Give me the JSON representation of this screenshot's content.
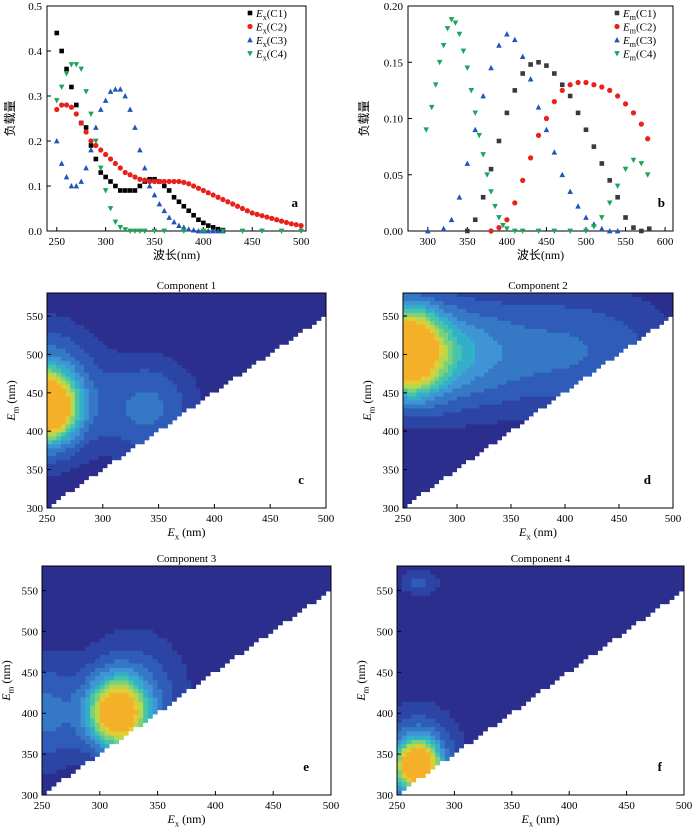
{
  "chart_data": [
    {
      "id": "a",
      "type": "scatter",
      "panel_letter": "a",
      "title": "",
      "xlabel": "波长(nm)",
      "ylabel": "负载量",
      "xlim": [
        240,
        505
      ],
      "ylim": [
        0,
        0.5
      ],
      "xticks": [
        250,
        300,
        350,
        400,
        450,
        500
      ],
      "yticks": [
        0,
        0.1,
        0.2,
        0.3,
        0.4,
        0.5
      ],
      "legend_position": "top-right",
      "series": [
        {
          "name": "Ex(C1)",
          "label_main": "E",
          "label_sub": "x",
          "label_tail": "(C1)",
          "color": "#000000",
          "marker": "square",
          "x": [
            250,
            255,
            260,
            265,
            270,
            275,
            280,
            285,
            290,
            295,
            300,
            305,
            310,
            315,
            320,
            325,
            330,
            335,
            340,
            345,
            350,
            355,
            360,
            365,
            370,
            375,
            380,
            385,
            390,
            395,
            400,
            405,
            410,
            415,
            420
          ],
          "y": [
            0.44,
            0.4,
            0.36,
            0.32,
            0.28,
            0.24,
            0.23,
            0.19,
            0.16,
            0.13,
            0.12,
            0.11,
            0.1,
            0.09,
            0.09,
            0.09,
            0.09,
            0.1,
            0.11,
            0.115,
            0.115,
            0.11,
            0.1,
            0.09,
            0.075,
            0.065,
            0.055,
            0.045,
            0.035,
            0.025,
            0.018,
            0.012,
            0.008,
            0.004,
            0.002
          ]
        },
        {
          "name": "Ex(C2)",
          "label_main": "E",
          "label_sub": "x",
          "label_tail": "(C2)",
          "color": "#e8211c",
          "marker": "circle",
          "x": [
            250,
            255,
            260,
            265,
            270,
            275,
            280,
            285,
            290,
            295,
            300,
            305,
            310,
            315,
            320,
            325,
            330,
            335,
            340,
            345,
            350,
            355,
            360,
            365,
            370,
            375,
            380,
            385,
            390,
            395,
            400,
            405,
            410,
            415,
            420,
            425,
            430,
            435,
            440,
            445,
            450,
            455,
            460,
            465,
            470,
            475,
            480,
            485,
            490,
            495,
            500
          ],
          "y": [
            0.27,
            0.28,
            0.28,
            0.275,
            0.26,
            0.24,
            0.22,
            0.2,
            0.19,
            0.18,
            0.17,
            0.16,
            0.15,
            0.14,
            0.13,
            0.125,
            0.12,
            0.115,
            0.113,
            0.11,
            0.11,
            0.11,
            0.11,
            0.11,
            0.11,
            0.11,
            0.108,
            0.105,
            0.1,
            0.095,
            0.09,
            0.085,
            0.08,
            0.075,
            0.07,
            0.065,
            0.06,
            0.055,
            0.05,
            0.045,
            0.04,
            0.037,
            0.034,
            0.031,
            0.028,
            0.025,
            0.022,
            0.019,
            0.016,
            0.014,
            0.012
          ]
        },
        {
          "name": "Ex(C3)",
          "label_main": "E",
          "label_sub": "x",
          "label_tail": "(C3)",
          "color": "#1f56b8",
          "marker": "triangle-up",
          "x": [
            250,
            255,
            260,
            265,
            270,
            275,
            280,
            285,
            290,
            295,
            300,
            305,
            310,
            315,
            320,
            325,
            330,
            335,
            340,
            345,
            350,
            355,
            360,
            365,
            370,
            375,
            380,
            385,
            390,
            395,
            400,
            405,
            410,
            415,
            420
          ],
          "y": [
            0.2,
            0.15,
            0.12,
            0.1,
            0.1,
            0.11,
            0.14,
            0.18,
            0.23,
            0.27,
            0.29,
            0.31,
            0.315,
            0.315,
            0.3,
            0.27,
            0.23,
            0.18,
            0.14,
            0.1,
            0.08,
            0.06,
            0.045,
            0.03,
            0.02,
            0.012,
            0.008,
            0.004,
            0.002,
            0,
            0,
            0,
            0,
            0,
            0
          ]
        },
        {
          "name": "Ex(C4)",
          "label_main": "E",
          "label_sub": "x",
          "label_tail": "(C4)",
          "color": "#1aa558",
          "marker": "triangle-down",
          "x": [
            250,
            255,
            260,
            265,
            270,
            275,
            280,
            285,
            290,
            295,
            300,
            305,
            310,
            315,
            320,
            325,
            330,
            335,
            340,
            350,
            360,
            380,
            400,
            420,
            440,
            460,
            480,
            500
          ],
          "y": [
            0.29,
            0.32,
            0.35,
            0.37,
            0.37,
            0.36,
            0.31,
            0.26,
            0.2,
            0.14,
            0.09,
            0.05,
            0.02,
            0.008,
            0.003,
            0,
            0,
            0,
            0,
            0,
            0,
            0,
            0,
            0,
            0,
            0,
            0,
            0
          ]
        }
      ]
    },
    {
      "id": "b",
      "type": "scatter",
      "panel_letter": "b",
      "title": "",
      "xlabel": "波长(nm)",
      "ylabel": "负载量",
      "xlim": [
        275,
        610
      ],
      "ylim": [
        0,
        0.2
      ],
      "xticks": [
        300,
        350,
        400,
        450,
        500,
        550,
        600
      ],
      "yticks": [
        0.0,
        0.05,
        0.1,
        0.15,
        0.2
      ],
      "legend_position": "top-right",
      "series": [
        {
          "name": "Em(C1)",
          "label_main": "E",
          "label_sub": "m",
          "label_tail": "(C1)",
          "color": "#3a3a3a",
          "marker": "square",
          "x": [
            350,
            360,
            370,
            380,
            390,
            400,
            410,
            420,
            430,
            440,
            450,
            460,
            470,
            480,
            490,
            500,
            510,
            520,
            530,
            540,
            550,
            560,
            570,
            580
          ],
          "y": [
            0,
            0.01,
            0.03,
            0.055,
            0.08,
            0.105,
            0.125,
            0.14,
            0.148,
            0.15,
            0.147,
            0.14,
            0.13,
            0.12,
            0.105,
            0.09,
            0.075,
            0.06,
            0.045,
            0.03,
            0.012,
            0.003,
            0,
            0.002
          ]
        },
        {
          "name": "Em(C2)",
          "label_main": "E",
          "label_sub": "m",
          "label_tail": "(C2)",
          "color": "#e8211c",
          "marker": "circle",
          "x": [
            380,
            390,
            400,
            410,
            420,
            430,
            440,
            450,
            460,
            470,
            480,
            490,
            500,
            510,
            520,
            530,
            540,
            550,
            560,
            570,
            578
          ],
          "y": [
            0,
            0.003,
            0.01,
            0.025,
            0.045,
            0.065,
            0.085,
            0.1,
            0.115,
            0.125,
            0.13,
            0.132,
            0.132,
            0.13,
            0.128,
            0.125,
            0.12,
            0.113,
            0.105,
            0.095,
            0.082
          ]
        },
        {
          "name": "Em(C3)",
          "label_main": "E",
          "label_sub": "m",
          "label_tail": "(C3)",
          "color": "#1f56b8",
          "marker": "triangle-up",
          "x": [
            300,
            320,
            330,
            340,
            350,
            360,
            370,
            380,
            390,
            400,
            410,
            420,
            430,
            440,
            450,
            460,
            470,
            480,
            490,
            500,
            510,
            520,
            530,
            540
          ],
          "y": [
            0,
            0.002,
            0.01,
            0.03,
            0.06,
            0.09,
            0.12,
            0.145,
            0.165,
            0.175,
            0.17,
            0.155,
            0.135,
            0.11,
            0.09,
            0.07,
            0.05,
            0.035,
            0.022,
            0.012,
            0.006,
            0.002,
            0,
            0
          ]
        },
        {
          "name": "Em(C4)",
          "label_main": "E",
          "label_sub": "m",
          "label_tail": "(C4)",
          "color": "#1aa558",
          "marker": "triangle-down",
          "x": [
            298,
            305,
            310,
            315,
            320,
            325,
            330,
            335,
            340,
            345,
            350,
            355,
            360,
            365,
            370,
            375,
            380,
            385,
            390,
            395,
            400,
            410,
            420,
            440,
            460,
            480,
            500,
            510,
            520,
            530,
            540,
            550,
            560,
            570,
            578
          ],
          "y": [
            0.09,
            0.11,
            0.13,
            0.15,
            0.165,
            0.18,
            0.188,
            0.185,
            0.175,
            0.16,
            0.145,
            0.125,
            0.105,
            0.085,
            0.068,
            0.05,
            0.035,
            0.022,
            0.012,
            0.005,
            0.002,
            0,
            0,
            0,
            0,
            0,
            0,
            0.004,
            0.012,
            0.025,
            0.04,
            0.055,
            0.063,
            0.06,
            0.05
          ]
        }
      ]
    },
    {
      "id": "c",
      "type": "heatmap",
      "panel_letter": "c",
      "title": "Component 1",
      "xlabel_main": "E",
      "xlabel_sub": "x",
      "xlabel_tail": " (nm)",
      "ylabel_main": "E",
      "ylabel_sub": "m",
      "ylabel_tail": " (nm)",
      "xlim": [
        250,
        500
      ],
      "ylim": [
        300,
        580
      ],
      "xticks": [
        250,
        300,
        350,
        400,
        450,
        500
      ],
      "yticks": [
        300,
        350,
        400,
        450,
        500,
        550
      ],
      "peaks": [
        {
          "ex": 250,
          "em": 430,
          "sx": 18,
          "sy": 30,
          "amp": 1.0
        },
        {
          "ex": 250,
          "em": 450,
          "sx": 30,
          "sy": 55,
          "amp": 0.45
        },
        {
          "ex": 340,
          "em": 430,
          "sx": 30,
          "sy": 45,
          "amp": 0.3
        }
      ]
    },
    {
      "id": "d",
      "type": "heatmap",
      "panel_letter": "d",
      "title": "Component 2",
      "xlabel_main": "E",
      "xlabel_sub": "x",
      "xlabel_tail": " (nm)",
      "ylabel_main": "E",
      "ylabel_sub": "m",
      "ylabel_tail": " (nm)",
      "xlim": [
        250,
        500
      ],
      "ylim": [
        300,
        580
      ],
      "xticks": [
        250,
        300,
        350,
        400,
        450,
        500
      ],
      "yticks": [
        300,
        350,
        400,
        450,
        500,
        550
      ],
      "peaks": [
        {
          "ex": 255,
          "em": 505,
          "sx": 20,
          "sy": 38,
          "amp": 1.0
        },
        {
          "ex": 280,
          "em": 500,
          "sx": 45,
          "sy": 48,
          "amp": 0.45
        },
        {
          "ex": 400,
          "em": 505,
          "sx": 70,
          "sy": 55,
          "amp": 0.28
        }
      ]
    },
    {
      "id": "e",
      "type": "heatmap",
      "panel_letter": "e",
      "title": "Component 3",
      "xlabel_main": "E",
      "xlabel_sub": "x",
      "xlabel_tail": " (nm)",
      "ylabel_main": "E",
      "ylabel_sub": "m",
      "ylabel_tail": " (nm)",
      "xlim": [
        250,
        500
      ],
      "ylim": [
        300,
        580
      ],
      "xticks": [
        250,
        300,
        350,
        400,
        450,
        500
      ],
      "yticks": [
        300,
        350,
        400,
        450,
        500,
        550
      ],
      "peaks": [
        {
          "ex": 315,
          "em": 400,
          "sx": 18,
          "sy": 30,
          "amp": 1.0
        },
        {
          "ex": 250,
          "em": 400,
          "sx": 22,
          "sy": 45,
          "amp": 0.3
        },
        {
          "ex": 330,
          "em": 420,
          "sx": 32,
          "sy": 55,
          "amp": 0.25
        }
      ]
    },
    {
      "id": "f",
      "type": "heatmap",
      "panel_letter": "f",
      "title": "Component 4",
      "xlabel_main": "E",
      "xlabel_sub": "x",
      "xlabel_tail": " (nm)",
      "ylabel_main": "E",
      "ylabel_sub": "m",
      "ylabel_tail": " (nm)",
      "xlim": [
        250,
        500
      ],
      "ylim": [
        300,
        580
      ],
      "xticks": [
        250,
        300,
        350,
        400,
        450,
        500
      ],
      "yticks": [
        300,
        350,
        400,
        450,
        500,
        550
      ],
      "peaks": [
        {
          "ex": 268,
          "em": 335,
          "sx": 14,
          "sy": 22,
          "amp": 1.0
        },
        {
          "ex": 268,
          "em": 350,
          "sx": 25,
          "sy": 40,
          "amp": 0.3
        },
        {
          "ex": 270,
          "em": 560,
          "sx": 12,
          "sy": 12,
          "amp": 0.2
        }
      ]
    }
  ]
}
